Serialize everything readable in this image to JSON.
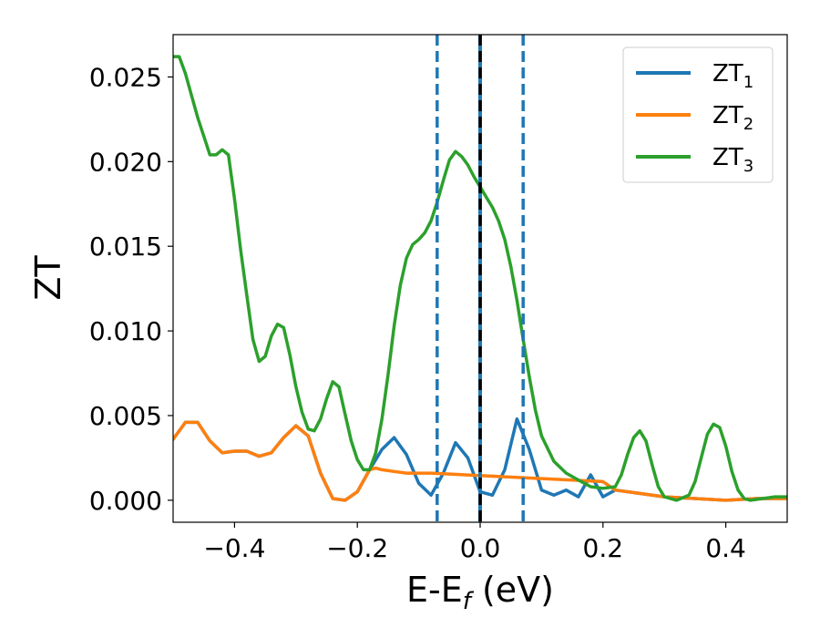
{
  "chart_data": {
    "type": "line",
    "xlabel": "E-E",
    "xlabel_subscript": "f",
    "xlabel_unit": " (eV)",
    "ylabel": "ZT",
    "xlim": [
      -0.5,
      0.5
    ],
    "ylim": [
      -0.0013,
      0.0275
    ],
    "xticks": [
      -0.4,
      -0.2,
      0.0,
      0.2,
      0.4
    ],
    "xtick_labels": [
      "−0.4",
      "−0.2",
      "0.0",
      "0.2",
      "0.4"
    ],
    "yticks": [
      0.0,
      0.005,
      0.01,
      0.015,
      0.02,
      0.025
    ],
    "ytick_labels": [
      "0.000",
      "0.005",
      "0.010",
      "0.015",
      "0.020",
      "0.025"
    ],
    "grid": false,
    "legend_position": "top-right",
    "vertical_lines": [
      {
        "x": -0.07,
        "style": "dashed",
        "color": "#1f77b4"
      },
      {
        "x": 0.0,
        "style": "solid",
        "color": "#1f77b4"
      },
      {
        "x": 0.0,
        "style": "dashed",
        "color": "#000000"
      },
      {
        "x": 0.07,
        "style": "dashed",
        "color": "#1f77b4"
      }
    ],
    "series": [
      {
        "name": "ZT",
        "subscript": "1",
        "color": "#1f77b4",
        "x": [
          -0.5,
          -0.48,
          -0.46,
          -0.44,
          -0.42,
          -0.4,
          -0.38,
          -0.36,
          -0.34,
          -0.32,
          -0.3,
          -0.28,
          -0.26,
          -0.24,
          -0.22,
          -0.2,
          -0.18,
          -0.16,
          -0.14,
          -0.12,
          -0.1,
          -0.08,
          -0.06,
          -0.04,
          -0.02,
          0.0,
          0.02,
          0.04,
          0.06,
          0.08,
          0.1,
          0.12,
          0.14,
          0.16,
          0.18,
          0.2,
          0.22,
          0.26,
          0.3,
          0.35,
          0.4,
          0.45,
          0.5
        ],
        "y": [
          0.0036,
          0.0046,
          0.0046,
          0.0035,
          0.0028,
          0.0029,
          0.0029,
          0.0026,
          0.0028,
          0.0037,
          0.0044,
          0.0038,
          0.0016,
          0.0001,
          0.0,
          0.0005,
          0.0018,
          0.003,
          0.0037,
          0.0027,
          0.001,
          0.0003,
          0.0016,
          0.0034,
          0.0025,
          0.0005,
          0.0003,
          0.0018,
          0.0048,
          0.003,
          0.0006,
          0.0003,
          0.0006,
          0.0002,
          0.0015,
          0.0002,
          0.0006,
          0.0004,
          0.0002,
          0.0001,
          0.0,
          0.0001,
          0.0001
        ]
      },
      {
        "name": "ZT",
        "subscript": "2",
        "color": "#ff7f0e",
        "x": [
          -0.5,
          -0.48,
          -0.46,
          -0.44,
          -0.42,
          -0.4,
          -0.38,
          -0.36,
          -0.34,
          -0.32,
          -0.3,
          -0.28,
          -0.26,
          -0.24,
          -0.22,
          -0.2,
          -0.18,
          -0.17,
          -0.16,
          -0.14,
          -0.12,
          -0.1,
          -0.08,
          0.2,
          0.22,
          0.26,
          0.3,
          0.35,
          0.4,
          0.45,
          0.5
        ],
        "y": [
          0.0036,
          0.0046,
          0.0046,
          0.0035,
          0.0028,
          0.0029,
          0.0029,
          0.0026,
          0.0028,
          0.0037,
          0.0044,
          0.0038,
          0.0016,
          0.0001,
          0.0,
          0.0005,
          0.0018,
          0.0019,
          0.0018,
          0.0017,
          0.0016,
          0.0016,
          0.0016,
          0.0011,
          0.0006,
          0.0004,
          0.0002,
          0.0001,
          0.0,
          0.0001,
          0.0001
        ]
      },
      {
        "name": "ZT",
        "subscript": "3",
        "color": "#2ca02c",
        "x": [
          -0.5,
          -0.49,
          -0.48,
          -0.46,
          -0.44,
          -0.43,
          -0.42,
          -0.41,
          -0.4,
          -0.39,
          -0.38,
          -0.37,
          -0.36,
          -0.35,
          -0.34,
          -0.33,
          -0.32,
          -0.31,
          -0.3,
          -0.29,
          -0.28,
          -0.27,
          -0.26,
          -0.25,
          -0.24,
          -0.23,
          -0.22,
          -0.21,
          -0.2,
          -0.19,
          -0.18,
          -0.17,
          -0.16,
          -0.15,
          -0.14,
          -0.13,
          -0.12,
          -0.11,
          -0.1,
          -0.09,
          -0.08,
          -0.07,
          -0.06,
          -0.05,
          -0.04,
          -0.03,
          -0.02,
          -0.01,
          0.0,
          0.01,
          0.02,
          0.03,
          0.04,
          0.05,
          0.06,
          0.07,
          0.08,
          0.09,
          0.1,
          0.12,
          0.14,
          0.16,
          0.18,
          0.2,
          0.22,
          0.23,
          0.24,
          0.25,
          0.26,
          0.27,
          0.28,
          0.29,
          0.3,
          0.32,
          0.34,
          0.35,
          0.36,
          0.37,
          0.38,
          0.39,
          0.4,
          0.41,
          0.42,
          0.43,
          0.44,
          0.46,
          0.48,
          0.5
        ],
        "y": [
          0.0262,
          0.0262,
          0.0252,
          0.0226,
          0.0204,
          0.0204,
          0.0207,
          0.0204,
          0.0178,
          0.0148,
          0.0121,
          0.0095,
          0.0082,
          0.0085,
          0.0097,
          0.0104,
          0.0102,
          0.0086,
          0.0067,
          0.0052,
          0.0042,
          0.0041,
          0.0048,
          0.006,
          0.007,
          0.0067,
          0.0051,
          0.0035,
          0.0024,
          0.0018,
          0.0018,
          0.0028,
          0.0048,
          0.0074,
          0.0103,
          0.0127,
          0.0143,
          0.0151,
          0.0154,
          0.0158,
          0.0165,
          0.0176,
          0.0189,
          0.0201,
          0.0206,
          0.0203,
          0.0198,
          0.0191,
          0.0185,
          0.0179,
          0.0173,
          0.0165,
          0.0154,
          0.0138,
          0.0118,
          0.0095,
          0.0073,
          0.0053,
          0.0038,
          0.0023,
          0.0016,
          0.0012,
          0.0008,
          0.0007,
          0.0008,
          0.0015,
          0.0027,
          0.0037,
          0.0041,
          0.0035,
          0.0021,
          0.0008,
          0.0002,
          0.0,
          0.0003,
          0.0011,
          0.0025,
          0.0039,
          0.0045,
          0.0043,
          0.0032,
          0.0017,
          0.0006,
          0.0001,
          0.0,
          0.0001,
          0.0002,
          0.0002
        ]
      }
    ]
  }
}
